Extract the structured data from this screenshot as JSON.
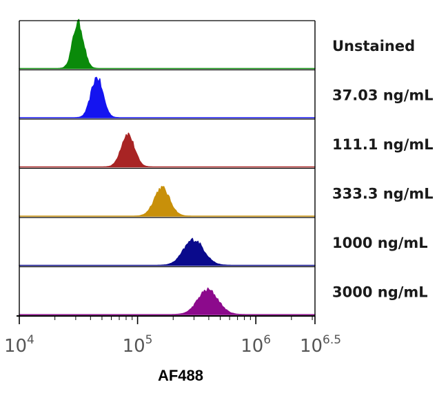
{
  "chart_data": {
    "type": "area",
    "subtype": "stacked-histogram-overlay",
    "xlabel": "AF488",
    "xscale": "log10",
    "xlim": [
      4,
      6.5
    ],
    "xticks": [
      {
        "value": 4,
        "base": "10",
        "exp": "4"
      },
      {
        "value": 5,
        "base": "10",
        "exp": "5"
      },
      {
        "value": 6,
        "base": "10",
        "exp": "6"
      },
      {
        "value": 6.5,
        "base": "10",
        "exp": "6.5"
      }
    ],
    "grid": false,
    "legend": "right, one label per panel",
    "series": [
      {
        "name": "Unstained",
        "color": "#0a8a0a",
        "peak_log10": 4.5,
        "spread": 0.045,
        "height": 1.0
      },
      {
        "name": "37.03 ng/mL",
        "color": "#1414f0",
        "peak_log10": 4.66,
        "spread": 0.05,
        "height": 0.88
      },
      {
        "name": "111.1 ng/mL",
        "color": "#a82424",
        "peak_log10": 4.92,
        "spread": 0.055,
        "height": 0.72
      },
      {
        "name": "333.3 ng/mL",
        "color": "#c8900a",
        "peak_log10": 5.21,
        "spread": 0.065,
        "height": 0.62
      },
      {
        "name": "1000 ng/mL",
        "color": "#0a0a8c",
        "peak_log10": 5.48,
        "spread": 0.085,
        "height": 0.56
      },
      {
        "name": "3000 ng/mL",
        "color": "#8c0a8c",
        "peak_log10": 5.6,
        "spread": 0.085,
        "height": 0.54
      }
    ]
  }
}
